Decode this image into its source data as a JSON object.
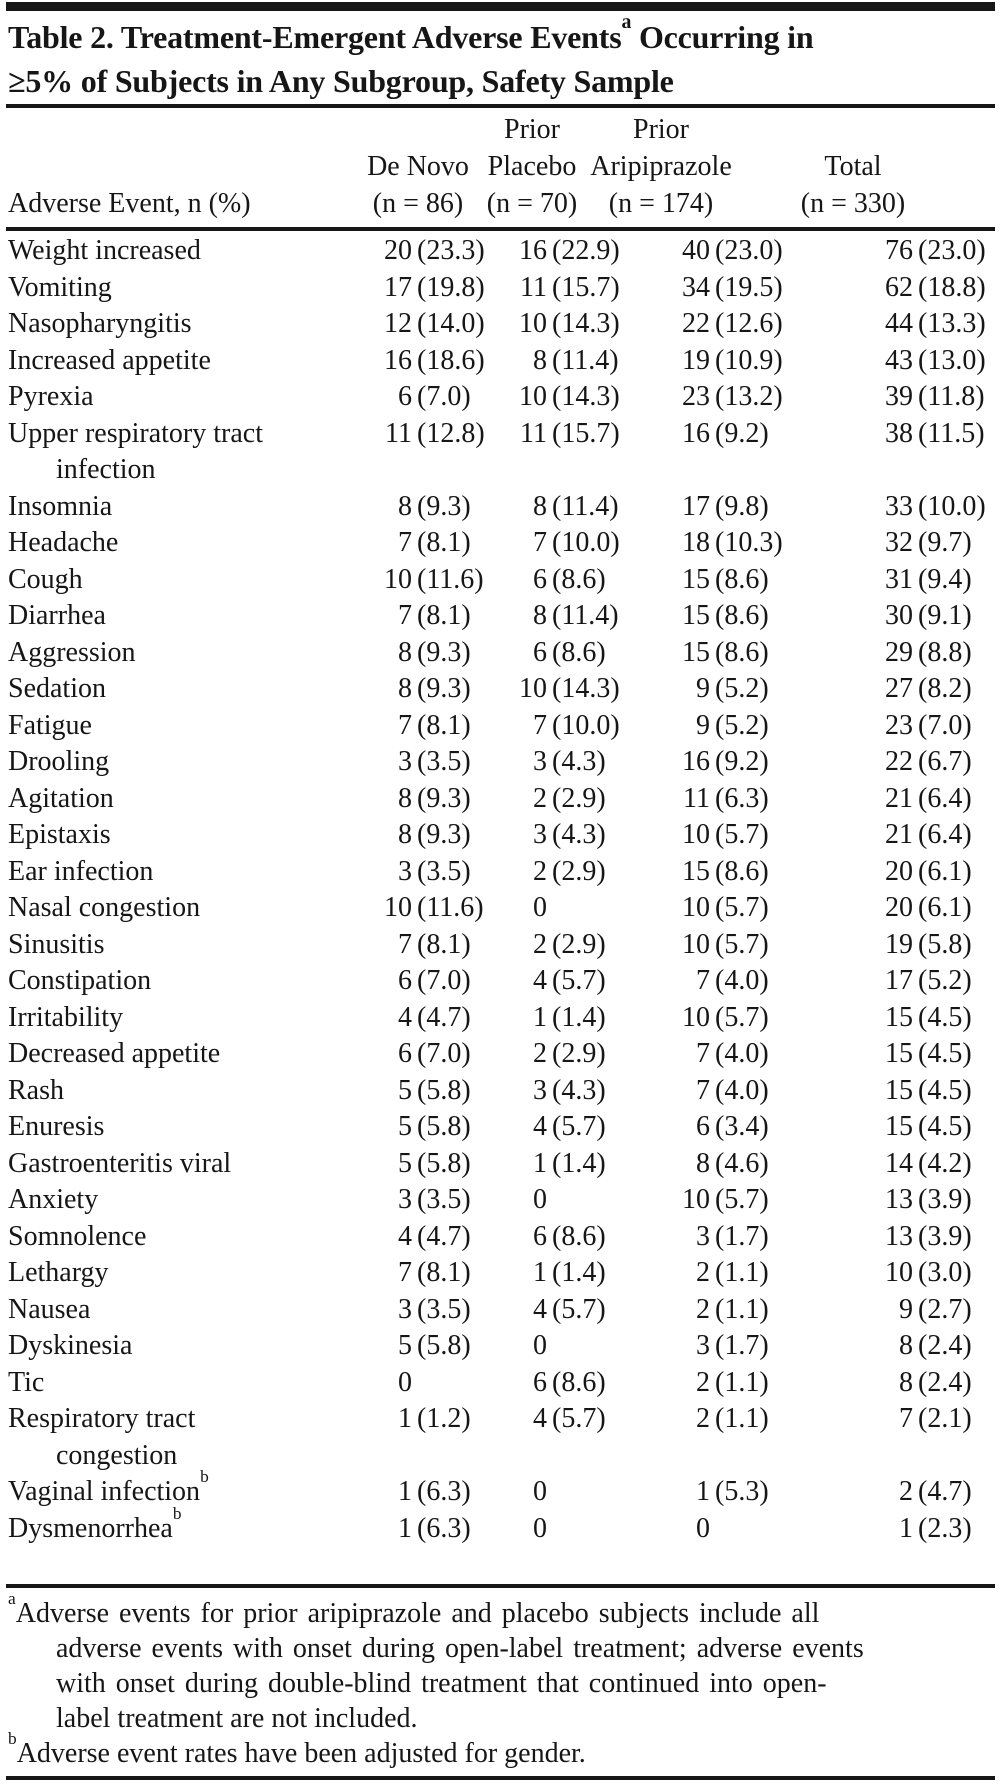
{
  "title": {
    "line1_pre": "Table 2. Treatment-Emergent Adverse Events",
    "line1_sup": "a",
    "line1_post": " Occurring in",
    "line2": "≥5% of Subjects in Any Subgroup, Safety Sample"
  },
  "header": {
    "event_label": "Adverse Event, n (%)",
    "groups": [
      {
        "name": "de-novo",
        "lines": [
          "De Novo",
          "(n = 86)"
        ]
      },
      {
        "name": "prior-placebo",
        "lines": [
          "Prior",
          "Placebo",
          "(n = 70)"
        ]
      },
      {
        "name": "prior-aripiprazole",
        "lines": [
          "Prior",
          "Aripiprazole",
          "(n = 174)"
        ]
      },
      {
        "name": "total",
        "lines": [
          "Total",
          "(n = 330)"
        ]
      }
    ]
  },
  "rows": [
    {
      "label_lines": [
        "Weight increased"
      ],
      "cells": [
        [
          "20",
          "(23.3)"
        ],
        [
          "16",
          "(22.9)"
        ],
        [
          "40",
          "(23.0)"
        ],
        [
          "76",
          "(23.0)"
        ]
      ]
    },
    {
      "label_lines": [
        "Vomiting"
      ],
      "cells": [
        [
          "17",
          "(19.8)"
        ],
        [
          "11",
          "(15.7)"
        ],
        [
          "34",
          "(19.5)"
        ],
        [
          "62",
          "(18.8)"
        ]
      ]
    },
    {
      "label_lines": [
        "Nasopharyngitis"
      ],
      "cells": [
        [
          "12",
          "(14.0)"
        ],
        [
          "10",
          "(14.3)"
        ],
        [
          "22",
          "(12.6)"
        ],
        [
          "44",
          "(13.3)"
        ]
      ]
    },
    {
      "label_lines": [
        "Increased appetite"
      ],
      "cells": [
        [
          "16",
          "(18.6)"
        ],
        [
          "8",
          "(11.4)"
        ],
        [
          "19",
          "(10.9)"
        ],
        [
          "43",
          "(13.0)"
        ]
      ]
    },
    {
      "label_lines": [
        "Pyrexia"
      ],
      "cells": [
        [
          "6",
          "(7.0)"
        ],
        [
          "10",
          "(14.3)"
        ],
        [
          "23",
          "(13.2)"
        ],
        [
          "39",
          "(11.8)"
        ]
      ]
    },
    {
      "label_lines": [
        "Upper respiratory tract",
        "infection"
      ],
      "cells": [
        [
          "11",
          "(12.8)"
        ],
        [
          "11",
          "(15.7)"
        ],
        [
          "16",
          "(9.2)"
        ],
        [
          "38",
          "(11.5)"
        ]
      ]
    },
    {
      "label_lines": [
        "Insomnia"
      ],
      "cells": [
        [
          "8",
          "(9.3)"
        ],
        [
          "8",
          "(11.4)"
        ],
        [
          "17",
          "(9.8)"
        ],
        [
          "33",
          "(10.0)"
        ]
      ]
    },
    {
      "label_lines": [
        "Headache"
      ],
      "cells": [
        [
          "7",
          "(8.1)"
        ],
        [
          "7",
          "(10.0)"
        ],
        [
          "18",
          "(10.3)"
        ],
        [
          "32",
          "(9.7)"
        ]
      ]
    },
    {
      "label_lines": [
        "Cough"
      ],
      "cells": [
        [
          "10",
          "(11.6)"
        ],
        [
          "6",
          "(8.6)"
        ],
        [
          "15",
          "(8.6)"
        ],
        [
          "31",
          "(9.4)"
        ]
      ]
    },
    {
      "label_lines": [
        "Diarrhea"
      ],
      "cells": [
        [
          "7",
          "(8.1)"
        ],
        [
          "8",
          "(11.4)"
        ],
        [
          "15",
          "(8.6)"
        ],
        [
          "30",
          "(9.1)"
        ]
      ]
    },
    {
      "label_lines": [
        "Aggression"
      ],
      "cells": [
        [
          "8",
          "(9.3)"
        ],
        [
          "6",
          "(8.6)"
        ],
        [
          "15",
          "(8.6)"
        ],
        [
          "29",
          "(8.8)"
        ]
      ]
    },
    {
      "label_lines": [
        "Sedation"
      ],
      "cells": [
        [
          "8",
          "(9.3)"
        ],
        [
          "10",
          "(14.3)"
        ],
        [
          "9",
          "(5.2)"
        ],
        [
          "27",
          "(8.2)"
        ]
      ]
    },
    {
      "label_lines": [
        "Fatigue"
      ],
      "cells": [
        [
          "7",
          "(8.1)"
        ],
        [
          "7",
          "(10.0)"
        ],
        [
          "9",
          "(5.2)"
        ],
        [
          "23",
          "(7.0)"
        ]
      ]
    },
    {
      "label_lines": [
        "Drooling"
      ],
      "cells": [
        [
          "3",
          "(3.5)"
        ],
        [
          "3",
          "(4.3)"
        ],
        [
          "16",
          "(9.2)"
        ],
        [
          "22",
          "(6.7)"
        ]
      ]
    },
    {
      "label_lines": [
        "Agitation"
      ],
      "cells": [
        [
          "8",
          "(9.3)"
        ],
        [
          "2",
          "(2.9)"
        ],
        [
          "11",
          "(6.3)"
        ],
        [
          "21",
          "(6.4)"
        ]
      ]
    },
    {
      "label_lines": [
        "Epistaxis"
      ],
      "cells": [
        [
          "8",
          "(9.3)"
        ],
        [
          "3",
          "(4.3)"
        ],
        [
          "10",
          "(5.7)"
        ],
        [
          "21",
          "(6.4)"
        ]
      ]
    },
    {
      "label_lines": [
        "Ear infection"
      ],
      "cells": [
        [
          "3",
          "(3.5)"
        ],
        [
          "2",
          "(2.9)"
        ],
        [
          "15",
          "(8.6)"
        ],
        [
          "20",
          "(6.1)"
        ]
      ]
    },
    {
      "label_lines": [
        "Nasal congestion"
      ],
      "cells": [
        [
          "10",
          "(11.6)"
        ],
        [
          "0",
          ""
        ],
        [
          "10",
          "(5.7)"
        ],
        [
          "20",
          "(6.1)"
        ]
      ]
    },
    {
      "label_lines": [
        "Sinusitis"
      ],
      "cells": [
        [
          "7",
          "(8.1)"
        ],
        [
          "2",
          "(2.9)"
        ],
        [
          "10",
          "(5.7)"
        ],
        [
          "19",
          "(5.8)"
        ]
      ]
    },
    {
      "label_lines": [
        "Constipation"
      ],
      "cells": [
        [
          "6",
          "(7.0)"
        ],
        [
          "4",
          "(5.7)"
        ],
        [
          "7",
          "(4.0)"
        ],
        [
          "17",
          "(5.2)"
        ]
      ]
    },
    {
      "label_lines": [
        "Irritability"
      ],
      "cells": [
        [
          "4",
          "(4.7)"
        ],
        [
          "1",
          "(1.4)"
        ],
        [
          "10",
          "(5.7)"
        ],
        [
          "15",
          "(4.5)"
        ]
      ]
    },
    {
      "label_lines": [
        "Decreased appetite"
      ],
      "cells": [
        [
          "6",
          "(7.0)"
        ],
        [
          "2",
          "(2.9)"
        ],
        [
          "7",
          "(4.0)"
        ],
        [
          "15",
          "(4.5)"
        ]
      ]
    },
    {
      "label_lines": [
        "Rash"
      ],
      "cells": [
        [
          "5",
          "(5.8)"
        ],
        [
          "3",
          "(4.3)"
        ],
        [
          "7",
          "(4.0)"
        ],
        [
          "15",
          "(4.5)"
        ]
      ]
    },
    {
      "label_lines": [
        "Enuresis"
      ],
      "cells": [
        [
          "5",
          "(5.8)"
        ],
        [
          "4",
          "(5.7)"
        ],
        [
          "6",
          "(3.4)"
        ],
        [
          "15",
          "(4.5)"
        ]
      ]
    },
    {
      "label_lines": [
        "Gastroenteritis viral"
      ],
      "cells": [
        [
          "5",
          "(5.8)"
        ],
        [
          "1",
          "(1.4)"
        ],
        [
          "8",
          "(4.6)"
        ],
        [
          "14",
          "(4.2)"
        ]
      ]
    },
    {
      "label_lines": [
        "Anxiety"
      ],
      "cells": [
        [
          "3",
          "(3.5)"
        ],
        [
          "0",
          ""
        ],
        [
          "10",
          "(5.7)"
        ],
        [
          "13",
          "(3.9)"
        ]
      ]
    },
    {
      "label_lines": [
        "Somnolence"
      ],
      "cells": [
        [
          "4",
          "(4.7)"
        ],
        [
          "6",
          "(8.6)"
        ],
        [
          "3",
          "(1.7)"
        ],
        [
          "13",
          "(3.9)"
        ]
      ]
    },
    {
      "label_lines": [
        "Lethargy"
      ],
      "cells": [
        [
          "7",
          "(8.1)"
        ],
        [
          "1",
          "(1.4)"
        ],
        [
          "2",
          "(1.1)"
        ],
        [
          "10",
          "(3.0)"
        ]
      ]
    },
    {
      "label_lines": [
        "Nausea"
      ],
      "cells": [
        [
          "3",
          "(3.5)"
        ],
        [
          "4",
          "(5.7)"
        ],
        [
          "2",
          "(1.1)"
        ],
        [
          "9",
          "(2.7)"
        ]
      ]
    },
    {
      "label_lines": [
        "Dyskinesia"
      ],
      "cells": [
        [
          "5",
          "(5.8)"
        ],
        [
          "0",
          ""
        ],
        [
          "3",
          "(1.7)"
        ],
        [
          "8",
          "(2.4)"
        ]
      ]
    },
    {
      "label_lines": [
        "Tic"
      ],
      "cells": [
        [
          "0",
          ""
        ],
        [
          "6",
          "(8.6)"
        ],
        [
          "2",
          "(1.1)"
        ],
        [
          "8",
          "(2.4)"
        ]
      ]
    },
    {
      "label_lines": [
        "Respiratory tract",
        "congestion"
      ],
      "cells": [
        [
          "1",
          "(1.2)"
        ],
        [
          "4",
          "(5.7)"
        ],
        [
          "2",
          "(1.1)"
        ],
        [
          "7",
          "(2.1)"
        ]
      ]
    },
    {
      "label_lines": [
        "Vaginal infection"
      ],
      "label_sup": "b",
      "cells": [
        [
          "1",
          "(6.3)"
        ],
        [
          "0",
          ""
        ],
        [
          "1",
          "(5.3)"
        ],
        [
          "2",
          "(4.7)"
        ]
      ]
    },
    {
      "label_lines": [
        "Dysmenorrhea"
      ],
      "label_sup": "b",
      "cells": [
        [
          "1",
          "(6.3)"
        ],
        [
          "0",
          ""
        ],
        [
          "0",
          ""
        ],
        [
          "1",
          "(2.3)"
        ]
      ]
    }
  ],
  "footnotes": [
    {
      "sup": "a",
      "lines": [
        "Adverse events for prior aripiprazole and placebo subjects include all",
        "adverse events with onset during open-label treatment; adverse events",
        "with onset during double-blind treatment that continued into open-",
        "label treatment are not included."
      ]
    },
    {
      "sup": "b",
      "lines": [
        "Adverse event rates have been adjusted for gender."
      ]
    }
  ],
  "colors": {
    "ink": "#161616",
    "paper": "#ffffff"
  }
}
